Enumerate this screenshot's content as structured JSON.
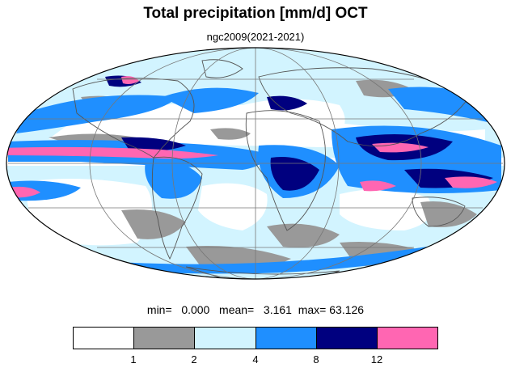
{
  "title": "Total precipitation [mm/d] OCT",
  "subtitle": "ngc2009(2021-2021)",
  "stats": {
    "min_label": "min=",
    "min_value": "0.000",
    "mean_label": "mean=",
    "mean_value": "3.161",
    "max_label": "max=",
    "max_value": "63.126"
  },
  "colorbar": {
    "colors": [
      "#ffffff",
      "#999999",
      "#d2f4ff",
      "#1f8fff",
      "#00007f",
      "#ff66b2"
    ],
    "ticks": [
      "1",
      "2",
      "4",
      "8",
      "12"
    ]
  },
  "map": {
    "projection": "mollweide",
    "land_outline_color": "#555555",
    "graticule_color": "#777777"
  }
}
